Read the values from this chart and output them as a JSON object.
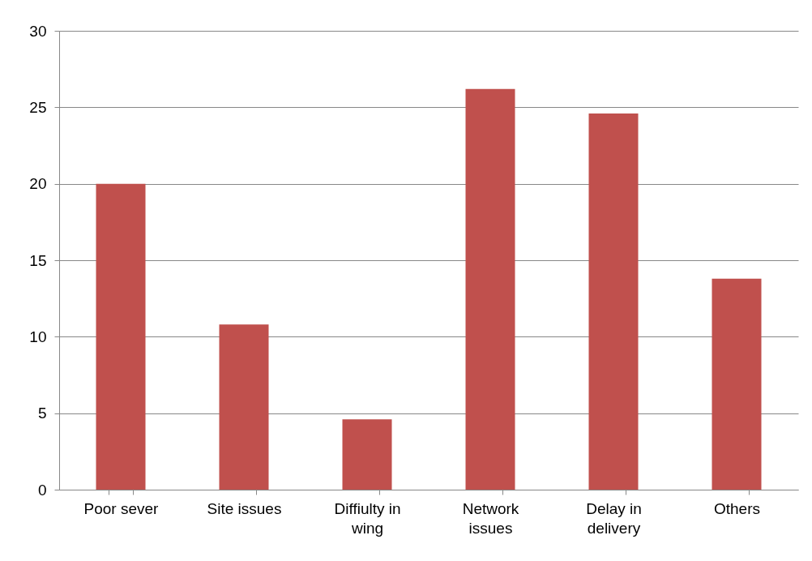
{
  "chart_data": {
    "type": "bar",
    "categories": [
      "Poor sever",
      "Site issues",
      "Diffiulty in wing",
      "Network issues",
      "Delay in delivery",
      "Others"
    ],
    "values": [
      20,
      10.8,
      4.6,
      26.2,
      24.6,
      13.8
    ],
    "color": "#c0504d",
    "ylim": [
      0,
      30
    ],
    "yticks": [
      0,
      5,
      10,
      15,
      20,
      25,
      30
    ],
    "grid": "y"
  }
}
